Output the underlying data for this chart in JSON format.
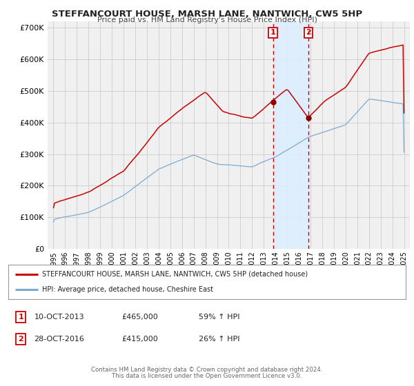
{
  "title": "STEFFANCOURT HOUSE, MARSH LANE, NANTWICH, CW5 5HP",
  "subtitle": "Price paid vs. HM Land Registry's House Price Index (HPI)",
  "legend_line1": "STEFFANCOURT HOUSE, MARSH LANE, NANTWICH, CW5 5HP (detached house)",
  "legend_line2": "HPI: Average price, detached house, Cheshire East",
  "transaction1_date": "10-OCT-2013",
  "transaction1_price": "£465,000",
  "transaction1_hpi": "59% ↑ HPI",
  "transaction1_year": 2013.78,
  "transaction1_value": 465000,
  "transaction2_date": "28-OCT-2016",
  "transaction2_price": "£415,000",
  "transaction2_hpi": "26% ↑ HPI",
  "transaction2_year": 2016.82,
  "transaction2_value": 415000,
  "ylabel_ticks": [
    "£0",
    "£100K",
    "£200K",
    "£300K",
    "£400K",
    "£500K",
    "£600K",
    "£700K"
  ],
  "ytick_vals": [
    0,
    100000,
    200000,
    300000,
    400000,
    500000,
    600000,
    700000
  ],
  "xmin": 1994.5,
  "xmax": 2025.5,
  "ymin": 0,
  "ymax": 720000,
  "red_line_color": "#cc0000",
  "blue_line_color": "#7aaad0",
  "background_color": "#f0f0f0",
  "grid_color": "#cccccc",
  "shade_color": "#ddeeff",
  "footnote1": "Contains HM Land Registry data © Crown copyright and database right 2024.",
  "footnote2": "This data is licensed under the Open Government Licence v3.0."
}
